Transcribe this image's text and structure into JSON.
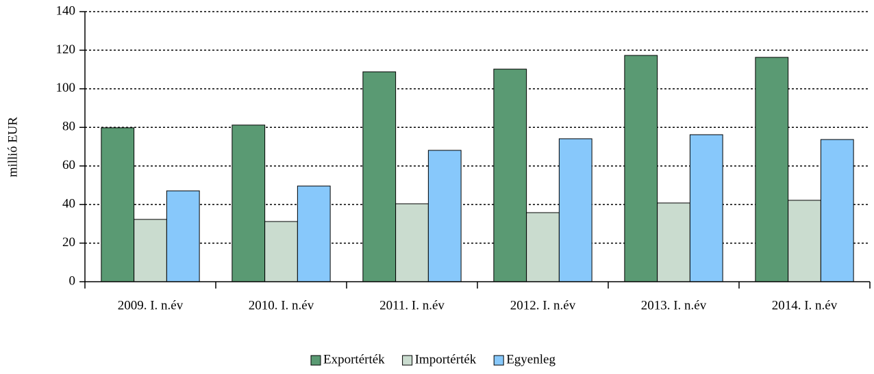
{
  "chart_data": {
    "type": "bar",
    "y_label": "millió EUR",
    "categories": [
      "2009. I. n.év",
      "2010. I. n.év",
      "2011. I. n.év",
      "2012. I. n.év",
      "2013. I. n.év",
      "2014. I. n.év"
    ],
    "series": [
      {
        "name": "Exportérték",
        "color": "#5a9a73",
        "values": [
          79.8,
          81.2,
          108.8,
          110.2,
          117.3,
          116.3
        ]
      },
      {
        "name": "Importérték",
        "color": "#cadccf",
        "values": [
          32.3,
          31.2,
          40.4,
          35.8,
          40.8,
          42.2
        ]
      },
      {
        "name": "Egyenleg",
        "color": "#87c8fb",
        "values": [
          47.1,
          49.6,
          68.1,
          74.1,
          76.2,
          73.7
        ]
      }
    ],
    "ylim": [
      0,
      140
    ],
    "yticks": [
      0,
      20,
      40,
      60,
      80,
      100,
      120,
      140
    ],
    "grid": true,
    "legend": "bottom"
  }
}
